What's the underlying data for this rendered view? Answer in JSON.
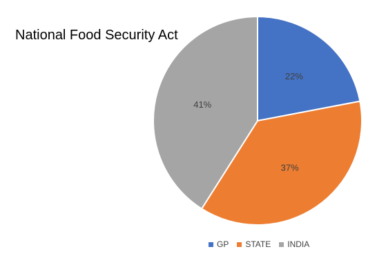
{
  "chart_data": {
    "type": "pie",
    "title": "National Food Security Act",
    "categories": [
      "GP",
      "STATE",
      "INDIA"
    ],
    "values": [
      22,
      37,
      41
    ],
    "data_labels": [
      "22%",
      "37%",
      "41%"
    ],
    "colors": [
      "#4472C4",
      "#ED7D31",
      "#A5A5A5"
    ],
    "legend_position": "bottom"
  }
}
